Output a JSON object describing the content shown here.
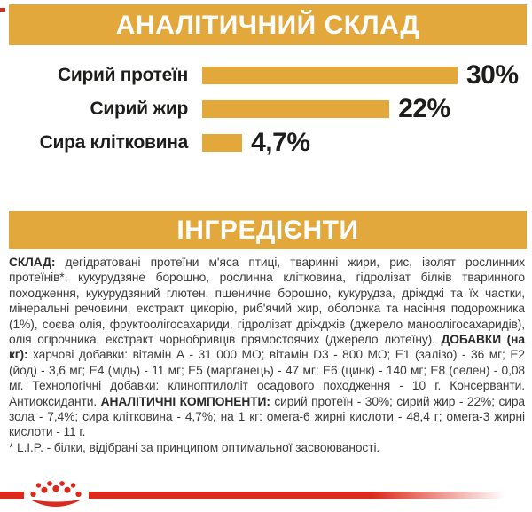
{
  "colors": {
    "gold": "#E2A83C",
    "red": "#DB2A1D",
    "text": "#3B3B3B",
    "dark": "#1D1D1B"
  },
  "sections": {
    "analytical_title": "АНАЛІТИЧНИЙ СКЛАД",
    "ingredients_title": "ІНГРЕДІЄНТИ"
  },
  "chart_data": {
    "type": "bar",
    "orientation": "horizontal",
    "title": "АНАЛІТИЧНИЙ СКЛАД",
    "categories": [
      "Сирий протеїн",
      "Сирий жир",
      "Сира клітковина"
    ],
    "values": [
      30,
      22,
      4.7
    ],
    "value_labels": [
      "30%",
      "22%",
      "4,7%"
    ],
    "bar_color": "#E2A83C",
    "xlim": [
      0,
      30
    ],
    "grid": false,
    "legend": false
  },
  "ingredients": {
    "segments": [
      {
        "text": "СКЛАД:",
        "bold": true
      },
      {
        "text": " дегідратовані протеїни м'яса птиці, тваринні жири, рис, ізолят рослинних протеїнів*, кукурудзяне борошно, рослинна клітковина, гідролізат білків тваринного походження, кукурудзяний глютен, пшеничне борошно, кукурудза, дріжджі та їх частки, мінеральні речовини, екстракт цикорію, риб'ячий жир, оболонка та насіння подорожника (1%), соєва олія, фруктоолігосахариди, гідролізат дріжджів (джерело маноолігосахаридів), олія огірочника, екстракт чорнобривців прямостоячих (джерело лютеїну). ",
        "bold": false
      },
      {
        "text": "ДОБАВКИ (на кг):",
        "bold": true
      },
      {
        "text": " харчові добавки: вітамін А - 31 000 МО; вітамін D3 - 800 МО; Е1 (залізо) - 36 мг; Е2 (йод) - 3,6 мг; Е4 (мідь) - 11 мг; Е5 (марганець) - 47 мг; Е6 (цинк) - 140 мг; Е8 (селен) - 0,08 мг. Технологічні добавки: клиноптилоліт осадового походження - 10 г. Консерванти. Антиоксиданти. ",
        "bold": false
      },
      {
        "text": "АНАЛІТИЧНІ КОМПОНЕНТИ:",
        "bold": true
      },
      {
        "text": " сирий протеїн - 30%; сирий жир - 22%; сира зола - 7,4%; сира клітковина - 4,7%; на 1 кг: омега-6 жирні кислоти - 48,4 г; омега-3 жирні кислоти - 11 г.",
        "bold": false
      }
    ],
    "footnote": "* L.I.P. - білки, відібрані за принципом оптимальної засвоюваності."
  },
  "brand": {
    "logo_icon": "royal-canin-crown"
  }
}
